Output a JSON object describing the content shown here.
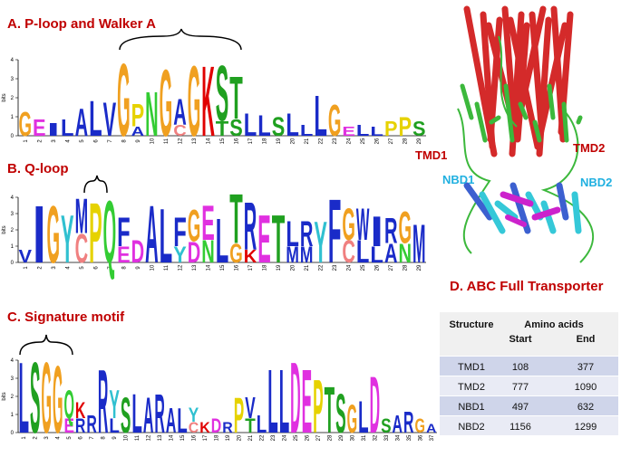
{
  "panels": [
    {
      "title": "A. P-loop and Walker A",
      "axis_label": "bits",
      "ylim": [
        0,
        4
      ],
      "yticks": [
        0,
        1,
        2,
        3,
        4
      ],
      "positions": [
        1,
        2,
        3,
        4,
        5,
        6,
        7,
        8,
        9,
        10,
        11,
        12,
        13,
        14,
        15,
        16,
        17,
        18,
        19,
        20,
        21,
        22,
        23,
        24,
        25,
        26,
        27,
        28,
        29
      ],
      "columns": [
        [
          {
            "letter": "G",
            "bits": 1.3
          }
        ],
        [
          {
            "letter": "E",
            "bits": 0.9
          }
        ],
        [
          {
            "letter": "I",
            "bits": 0.7
          }
        ],
        [
          {
            "letter": "L",
            "bits": 0.9
          }
        ],
        [
          {
            "letter": "A",
            "bits": 1.5
          }
        ],
        [
          {
            "letter": "L",
            "bits": 1.9
          }
        ],
        [
          {
            "letter": "V",
            "bits": 1.8
          }
        ],
        [
          {
            "letter": "G",
            "bits": 3.9
          }
        ],
        [
          {
            "letter": "P",
            "bits": 1.2
          },
          {
            "letter": "A",
            "bits": 0.5
          }
        ],
        [
          {
            "letter": "N",
            "bits": 2.4
          }
        ],
        [
          {
            "letter": "G",
            "bits": 3.6
          }
        ],
        [
          {
            "letter": "A",
            "bits": 1.4
          },
          {
            "letter": "C",
            "bits": 0.6
          }
        ],
        [
          {
            "letter": "G",
            "bits": 3.8
          }
        ],
        [
          {
            "letter": "K",
            "bits": 3.8
          }
        ],
        [
          {
            "letter": "S",
            "bits": 3.0
          },
          {
            "letter": "T",
            "bits": 0.8
          }
        ],
        [
          {
            "letter": "T",
            "bits": 2.3
          },
          {
            "letter": "S",
            "bits": 0.9
          }
        ],
        [
          {
            "letter": "L",
            "bits": 1.2
          }
        ],
        [
          {
            "letter": "L",
            "bits": 1.1
          }
        ],
        [
          {
            "letter": "S",
            "bits": 1.0
          }
        ],
        [
          {
            "letter": "L",
            "bits": 1.2
          }
        ],
        [
          {
            "letter": "L",
            "bits": 0.6
          }
        ],
        [
          {
            "letter": "L",
            "bits": 2.2
          }
        ],
        [
          {
            "letter": "G",
            "bits": 1.7
          }
        ],
        [
          {
            "letter": "E",
            "bits": 0.5
          }
        ],
        [
          {
            "letter": "L",
            "bits": 0.6
          }
        ],
        [
          {
            "letter": "L",
            "bits": 0.5
          }
        ],
        [
          {
            "letter": "P",
            "bits": 0.8
          }
        ],
        [
          {
            "letter": "P",
            "bits": 1.0
          }
        ],
        [
          {
            "letter": "S",
            "bits": 0.8
          }
        ]
      ]
    },
    {
      "title": "B. Q-loop",
      "axis_label": "bits",
      "ylim": [
        0,
        4
      ],
      "yticks": [
        0,
        1,
        2,
        3,
        4
      ],
      "positions": [
        1,
        2,
        3,
        4,
        5,
        6,
        7,
        8,
        9,
        10,
        11,
        12,
        13,
        14,
        15,
        16,
        17,
        18,
        19,
        20,
        21,
        22,
        23,
        24,
        25,
        26,
        27,
        28,
        29
      ],
      "columns": [
        [
          {
            "letter": "V",
            "bits": 0.8
          }
        ],
        [
          {
            "letter": "I",
            "bits": 3.6
          }
        ],
        [
          {
            "letter": "G",
            "bits": 3.6
          }
        ],
        [
          {
            "letter": "Y",
            "bits": 3.0
          }
        ],
        [
          {
            "letter": "M",
            "bits": 2.2
          },
          {
            "letter": "C",
            "bits": 1.8
          }
        ],
        [
          {
            "letter": "P",
            "bits": 3.8
          }
        ],
        [
          {
            "letter": "Q",
            "bits": 3.9
          }
        ],
        [
          {
            "letter": "F",
            "bits": 1.8
          },
          {
            "letter": "E",
            "bits": 1.0
          }
        ],
        [
          {
            "letter": "D",
            "bits": 1.4
          }
        ],
        [
          {
            "letter": "A",
            "bits": 3.6
          }
        ],
        [
          {
            "letter": "L",
            "bits": 3.4
          }
        ],
        [
          {
            "letter": "F",
            "bits": 1.8
          },
          {
            "letter": "Y",
            "bits": 1.0
          }
        ],
        [
          {
            "letter": "G",
            "bits": 2.0
          },
          {
            "letter": "D",
            "bits": 1.3
          }
        ],
        [
          {
            "letter": "E",
            "bits": 2.2
          },
          {
            "letter": "N",
            "bits": 1.4
          }
        ],
        [
          {
            "letter": "L",
            "bits": 2.8
          }
        ],
        [
          {
            "letter": "T",
            "bits": 3.1
          },
          {
            "letter": "G",
            "bits": 1.2
          }
        ],
        [
          {
            "letter": "R",
            "bits": 3.0
          },
          {
            "letter": "K",
            "bits": 0.8
          }
        ],
        [
          {
            "letter": "E",
            "bits": 3.0
          }
        ],
        [
          {
            "letter": "T",
            "bits": 3.0
          }
        ],
        [
          {
            "letter": "L",
            "bits": 1.6
          },
          {
            "letter": "M",
            "bits": 1.0
          }
        ],
        [
          {
            "letter": "R",
            "bits": 1.6
          },
          {
            "letter": "M",
            "bits": 1.0
          }
        ],
        [
          {
            "letter": "Y",
            "bits": 2.6
          }
        ],
        [
          {
            "letter": "F",
            "bits": 4.0
          }
        ],
        [
          {
            "letter": "G",
            "bits": 2.0
          },
          {
            "letter": "C",
            "bits": 1.4
          }
        ],
        [
          {
            "letter": "W",
            "bits": 2.0
          },
          {
            "letter": "L",
            "bits": 1.4
          }
        ],
        [
          {
            "letter": "I",
            "bits": 1.9
          },
          {
            "letter": "L",
            "bits": 1.0
          }
        ],
        [
          {
            "letter": "R",
            "bits": 1.6
          },
          {
            "letter": "A",
            "bits": 1.2
          }
        ],
        [
          {
            "letter": "G",
            "bits": 2.0
          },
          {
            "letter": "N",
            "bits": 1.2
          }
        ],
        [
          {
            "letter": "M",
            "bits": 2.4
          }
        ]
      ]
    },
    {
      "title": "C. Signature motif",
      "axis_label": "bits",
      "ylim": [
        0,
        4
      ],
      "yticks": [
        0,
        1,
        2,
        3,
        4
      ],
      "positions": [
        1,
        2,
        3,
        4,
        5,
        6,
        7,
        8,
        9,
        10,
        11,
        12,
        13,
        14,
        15,
        16,
        17,
        18,
        19,
        20,
        21,
        22,
        23,
        24,
        25,
        26,
        27,
        28,
        29,
        30,
        31,
        32,
        33,
        34,
        35,
        36,
        37
      ],
      "columns": [
        [
          {
            "letter": "L",
            "bits": 4.0
          }
        ],
        [
          {
            "letter": "S",
            "bits": 4.0
          }
        ],
        [
          {
            "letter": "G",
            "bits": 4.0
          }
        ],
        [
          {
            "letter": "G",
            "bits": 3.8
          }
        ],
        [
          {
            "letter": "Q",
            "bits": 1.6
          },
          {
            "letter": "E",
            "bits": 0.8
          }
        ],
        [
          {
            "letter": "K",
            "bits": 0.9
          },
          {
            "letter": "R",
            "bits": 0.8
          }
        ],
        [
          {
            "letter": "R",
            "bits": 1.0
          }
        ],
        [
          {
            "letter": "R",
            "bits": 3.6
          }
        ],
        [
          {
            "letter": "Y",
            "bits": 1.6
          },
          {
            "letter": "L",
            "bits": 0.8
          }
        ],
        [
          {
            "letter": "S",
            "bits": 2.0
          }
        ],
        [
          {
            "letter": "L",
            "bits": 2.2
          }
        ],
        [
          {
            "letter": "A",
            "bits": 2.0
          }
        ],
        [
          {
            "letter": "R",
            "bits": 2.2
          }
        ],
        [
          {
            "letter": "A",
            "bits": 1.4
          }
        ],
        [
          {
            "letter": "L",
            "bits": 1.4
          }
        ],
        [
          {
            "letter": "Y",
            "bits": 0.8
          },
          {
            "letter": "C",
            "bits": 0.6
          }
        ],
        [
          {
            "letter": "K",
            "bits": 0.6
          }
        ],
        [
          {
            "letter": "D",
            "bits": 0.8
          }
        ],
        [
          {
            "letter": "R",
            "bits": 0.6
          }
        ],
        [
          {
            "letter": "P",
            "bits": 2.0
          }
        ],
        [
          {
            "letter": "V",
            "bits": 1.2
          },
          {
            "letter": "T",
            "bits": 0.8
          }
        ],
        [
          {
            "letter": "L",
            "bits": 1.0
          }
        ],
        [
          {
            "letter": "L",
            "bits": 3.6
          }
        ],
        [
          {
            "letter": "L",
            "bits": 3.6
          }
        ],
        [
          {
            "letter": "D",
            "bits": 4.0
          }
        ],
        [
          {
            "letter": "E",
            "bits": 3.6
          }
        ],
        [
          {
            "letter": "P",
            "bits": 3.0
          }
        ],
        [
          {
            "letter": "T",
            "bits": 2.6
          }
        ],
        [
          {
            "letter": "S",
            "bits": 2.2
          }
        ],
        [
          {
            "letter": "G",
            "bits": 1.6
          }
        ],
        [
          {
            "letter": "L",
            "bits": 1.8
          }
        ],
        [
          {
            "letter": "D",
            "bits": 3.2
          }
        ],
        [
          {
            "letter": "S",
            "bits": 0.8
          }
        ],
        [
          {
            "letter": "A",
            "bits": 1.0
          }
        ],
        [
          {
            "letter": "R",
            "bits": 1.2
          }
        ],
        [
          {
            "letter": "G",
            "bits": 0.8
          }
        ],
        [
          {
            "letter": "A",
            "bits": 0.5
          }
        ]
      ]
    }
  ],
  "colors": {
    "G": "#f0a020",
    "P": "#e6d200",
    "A": "#1a2bc8",
    "V": "#1a2bc8",
    "L": "#1a2bc8",
    "I": "#1a2bc8",
    "M": "#1a2bc8",
    "F": "#1a2bc8",
    "W": "#1a2bc8",
    "S": "#20a020",
    "T": "#20a020",
    "N": "#33cc33",
    "Q": "#33cc33",
    "K": "#e00000",
    "R": "#1a2bc8",
    "D": "#e030e0",
    "E": "#e030e0",
    "Y": "#30c0d0",
    "H": "#30c0d0",
    "C": "#f08080"
  },
  "structure": {
    "title": "D. ABC Full Transporter",
    "labels": [
      "TMD1",
      "TMD2",
      "NBD1",
      "NBD2"
    ]
  },
  "table": {
    "header": [
      "Structure",
      "Amino acids",
      "Start",
      "End"
    ],
    "rows": [
      [
        "TMD1",
        108,
        377
      ],
      [
        "TMD2",
        777,
        1090
      ],
      [
        "NBD1",
        497,
        632
      ],
      [
        "NBD2",
        1156,
        1299
      ]
    ]
  }
}
